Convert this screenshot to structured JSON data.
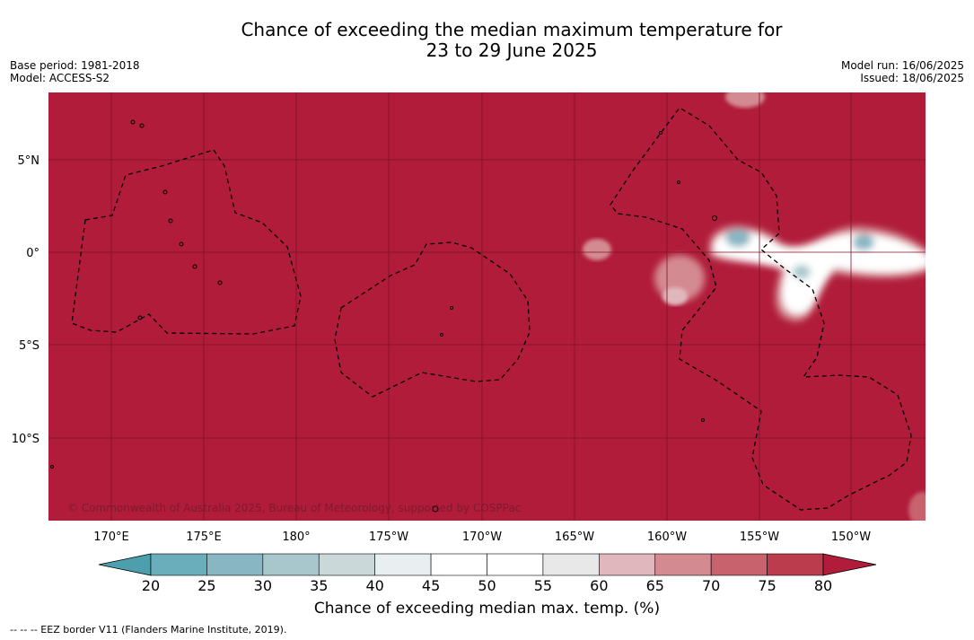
{
  "title_line1": "Chance of exceeding the median maximum temperature for",
  "title_line2": "23 to 29 June 2025",
  "meta_left": [
    "Base period: 1981-2018",
    "Model: ACCESS-S2"
  ],
  "meta_right": [
    "Model run: 16/06/2025",
    "Issued: 18/06/2025"
  ],
  "lon_labels": [
    "170°E",
    "175°E",
    "180°",
    "175°W",
    "170°W",
    "165°W",
    "160°W",
    "155°W",
    "150°W"
  ],
  "lat_labels": [
    "5°N",
    "0°",
    "5°S",
    "10°S"
  ],
  "copyright": "© Commonwealth of Australia 2025, Bureau of Meteorology, supported by COSPPac",
  "colorbar": {
    "ticks": [
      "20",
      "25",
      "30",
      "35",
      "40",
      "45",
      "50",
      "55",
      "60",
      "65",
      "70",
      "75",
      "80"
    ],
    "colors": [
      "#6aaebb",
      "#88b6c2",
      "#a8c7cd",
      "#cad8da",
      "#e9eef0",
      "#ffffff",
      "#ffffff",
      "#e8e8e8",
      "#e0b7bc",
      "#d48a91",
      "#c8626c",
      "#bb3d4d"
    ],
    "under_color": "#4e9fae",
    "over_color": "#b01c3a",
    "title": "Chance of exceeding median max. temp. (%)"
  },
  "footer": "--  --  -- EEZ border V11 (Flanders Marine Institute, 2019).",
  "colors": {
    "dominant": "#b01c3a",
    "grid": "#7a1326",
    "border": "#000000"
  }
}
